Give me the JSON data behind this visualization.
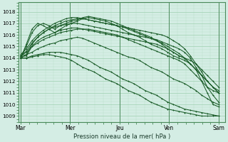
{
  "xlabel": "Pression niveau de la mer( hPa )",
  "bg_color": "#d4ede4",
  "grid_color_major": "#9ecfb0",
  "grid_color_minor": "#b8dfc8",
  "line_color": "#1a5c28",
  "ylim": [
    1008.5,
    1018.8
  ],
  "yticks": [
    1009,
    1010,
    1011,
    1012,
    1013,
    1014,
    1015,
    1016,
    1017,
    1018
  ],
  "xtick_labels": [
    "Mar",
    "Mer",
    "Jeu",
    "Ven",
    "Sam"
  ],
  "xtick_positions": [
    0,
    24,
    48,
    72,
    96
  ],
  "vline_positions": [
    0,
    24,
    48,
    72,
    96
  ],
  "series": [
    [
      1014.2,
      1014.5,
      1015.0,
      1015.3,
      1015.6,
      1015.8,
      1016.0,
      1016.2,
      1016.3,
      1016.4,
      1016.5,
      1016.5,
      1016.4,
      1016.3,
      1016.2,
      1016.1,
      1016.0,
      1015.9,
      1015.8,
      1015.7,
      1015.6,
      1015.5,
      1015.4,
      1015.3,
      1015.2,
      1015.0,
      1014.8,
      1014.5,
      1014.2,
      1014.0,
      1013.5,
      1013.0,
      1012.0,
      1011.0,
      1010.0,
      1009.8
    ],
    [
      1014.0,
      1014.3,
      1015.2,
      1015.8,
      1016.2,
      1016.5,
      1016.7,
      1016.8,
      1016.9,
      1017.0,
      1017.0,
      1016.9,
      1016.8,
      1016.7,
      1016.6,
      1016.5,
      1016.4,
      1016.3,
      1016.2,
      1016.1,
      1016.0,
      1015.9,
      1015.8,
      1015.7,
      1015.6,
      1015.4,
      1015.2,
      1015.0,
      1014.8,
      1014.5,
      1014.0,
      1013.2,
      1012.5,
      1011.5,
      1010.8,
      1010.2
    ],
    [
      1014.1,
      1014.2,
      1015.0,
      1015.5,
      1015.8,
      1016.0,
      1016.2,
      1016.4,
      1016.5,
      1016.6,
      1016.6,
      1016.5,
      1016.5,
      1016.4,
      1016.3,
      1016.2,
      1016.1,
      1016.0,
      1015.8,
      1015.6,
      1015.4,
      1015.2,
      1015.0,
      1014.8,
      1014.6,
      1014.4,
      1014.2,
      1014.0,
      1013.8,
      1013.5,
      1013.0,
      1012.5,
      1012.0,
      1011.5,
      1011.2,
      1011.0
    ],
    [
      1014.3,
      1014.8,
      1015.5,
      1016.0,
      1016.4,
      1016.7,
      1017.0,
      1017.2,
      1017.4,
      1017.5,
      1017.5,
      1017.4,
      1017.3,
      1017.2,
      1017.1,
      1017.0,
      1016.9,
      1016.8,
      1016.7,
      1016.6,
      1016.5,
      1016.4,
      1016.3,
      1016.2,
      1016.1,
      1016.0,
      1015.8,
      1015.5,
      1015.2,
      1014.8,
      1014.2,
      1013.5,
      1012.8,
      1012.0,
      1011.5,
      1011.0
    ],
    [
      1014.2,
      1014.6,
      1015.3,
      1015.8,
      1016.2,
      1016.5,
      1016.8,
      1017.0,
      1017.2,
      1017.3,
      1017.4,
      1017.4,
      1017.3,
      1017.2,
      1017.1,
      1017.0,
      1016.9,
      1016.8,
      1016.7,
      1016.5,
      1016.3,
      1016.1,
      1015.9,
      1015.7,
      1015.5,
      1015.3,
      1015.0,
      1014.7,
      1014.4,
      1014.0,
      1013.5,
      1013.0,
      1012.5,
      1012.0,
      1011.5,
      1011.2
    ],
    [
      1014.0,
      1015.0,
      1016.2,
      1016.8,
      1017.0,
      1016.8,
      1016.5,
      1016.8,
      1017.0,
      1017.2,
      1017.3,
      1017.5,
      1017.6,
      1017.5,
      1017.4,
      1017.3,
      1017.2,
      1017.0,
      1016.8,
      1016.6,
      1016.4,
      1016.2,
      1016.0,
      1015.8,
      1015.5,
      1015.2,
      1014.8,
      1014.5,
      1014.2,
      1014.0,
      1013.8,
      1013.5,
      1013.0,
      1012.5,
      1012.0,
      1011.5
    ],
    [
      1014.0,
      1015.2,
      1016.5,
      1017.0,
      1016.8,
      1016.5,
      1016.2,
      1016.5,
      1016.8,
      1017.0,
      1017.2,
      1017.4,
      1017.5,
      1017.4,
      1017.3,
      1017.2,
      1017.0,
      1016.8,
      1016.5,
      1016.2,
      1016.0,
      1015.8,
      1015.5,
      1015.2,
      1015.0,
      1014.8,
      1014.5,
      1014.2,
      1014.0,
      1013.8,
      1013.5,
      1013.0,
      1012.5,
      1012.0,
      1011.5,
      1011.0
    ],
    [
      1014.2,
      1014.3,
      1014.5,
      1014.8,
      1015.0,
      1015.2,
      1015.3,
      1015.5,
      1015.6,
      1015.7,
      1015.8,
      1015.7,
      1015.5,
      1015.3,
      1015.1,
      1014.9,
      1014.7,
      1014.5,
      1014.3,
      1014.1,
      1014.0,
      1013.8,
      1013.5,
      1013.2,
      1013.0,
      1012.8,
      1012.5,
      1012.2,
      1012.0,
      1011.8,
      1011.5,
      1011.2,
      1010.8,
      1010.5,
      1010.2,
      1010.0
    ],
    [
      1014.0,
      1014.0,
      1014.2,
      1014.3,
      1014.4,
      1014.5,
      1014.5,
      1014.5,
      1014.4,
      1014.3,
      1014.2,
      1014.0,
      1013.8,
      1013.5,
      1013.2,
      1013.0,
      1012.8,
      1012.5,
      1012.2,
      1012.0,
      1011.8,
      1011.5,
      1011.2,
      1011.0,
      1010.8,
      1010.5,
      1010.2,
      1010.0,
      1009.8,
      1009.6,
      1009.5,
      1009.4,
      1009.3,
      1009.2,
      1009.1,
      1009.0
    ],
    [
      1014.0,
      1014.0,
      1014.1,
      1014.2,
      1014.3,
      1014.3,
      1014.2,
      1014.1,
      1014.0,
      1013.8,
      1013.5,
      1013.2,
      1013.0,
      1012.8,
      1012.5,
      1012.2,
      1012.0,
      1011.8,
      1011.5,
      1011.2,
      1011.0,
      1010.8,
      1010.5,
      1010.2,
      1010.0,
      1009.8,
      1009.6,
      1009.5,
      1009.4,
      1009.3,
      1009.2,
      1009.1,
      1009.0,
      1009.0,
      1009.0,
      1009.0
    ]
  ],
  "x_total": 96
}
